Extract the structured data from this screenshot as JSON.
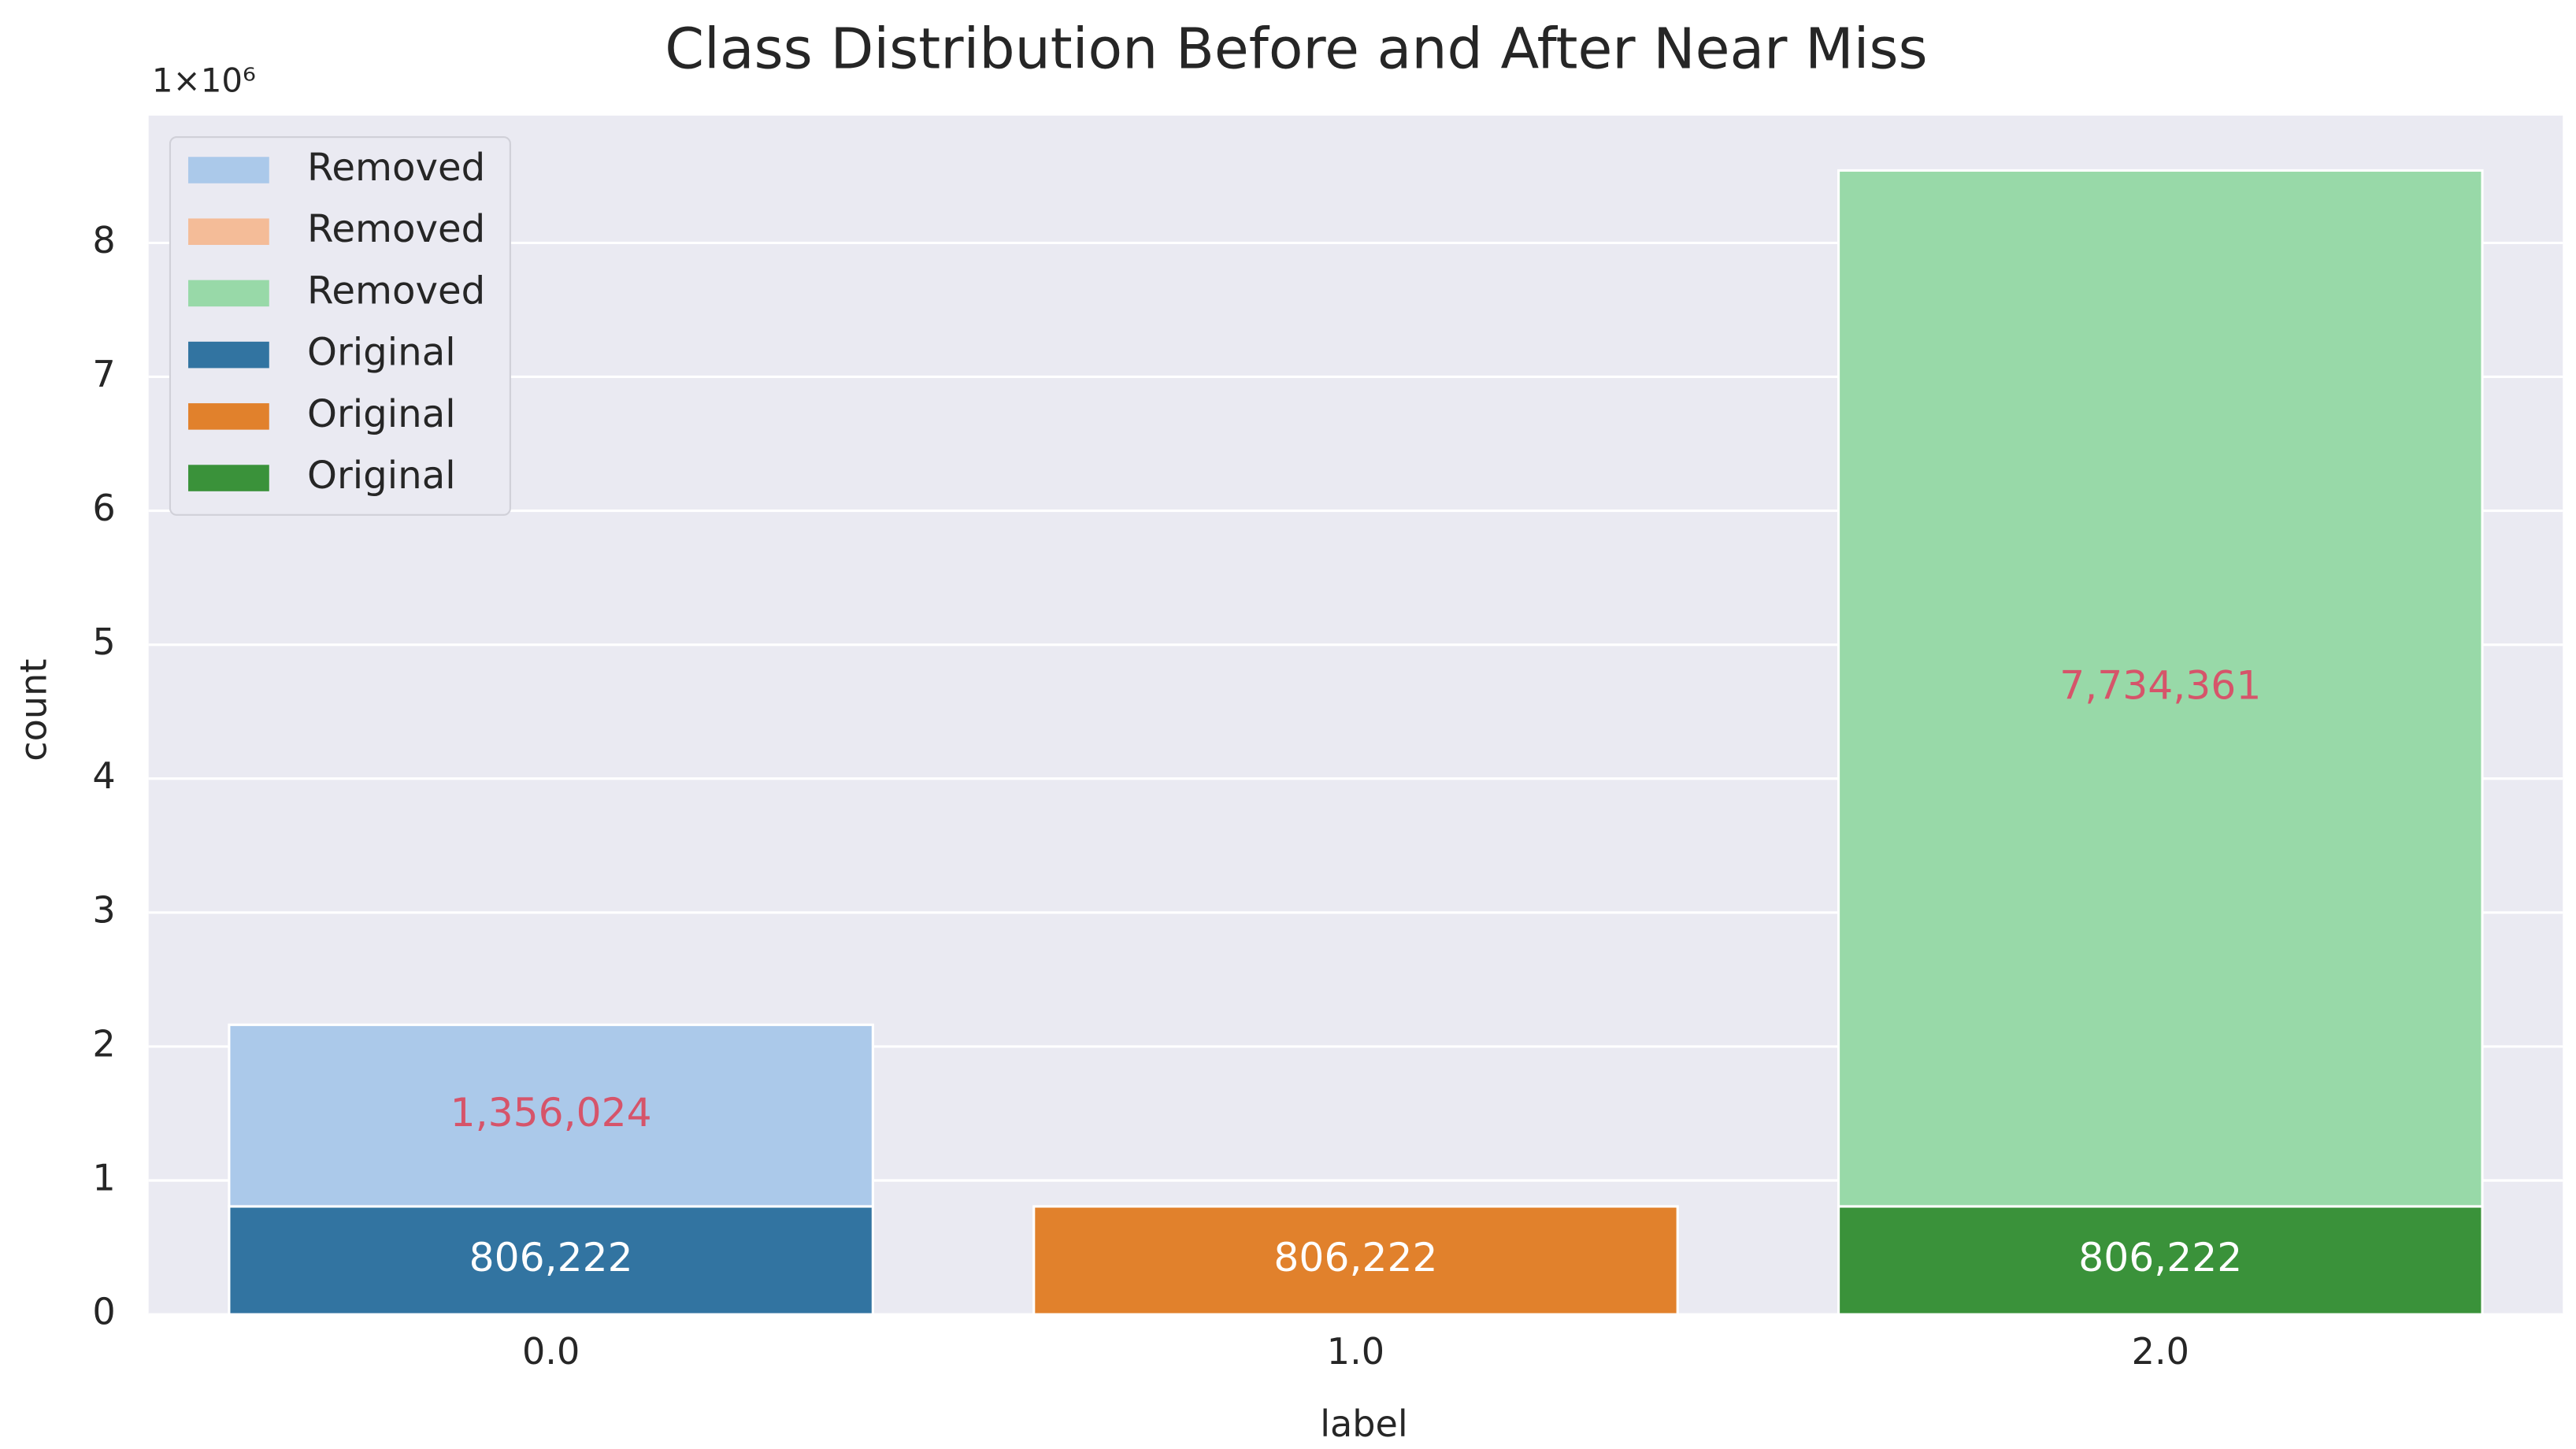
{
  "chart_data": {
    "type": "stacked_bar",
    "title": "Class Distribution Before and After Near Miss",
    "x_label": "label",
    "y_label": "count",
    "y_offset_label": "1×10⁶",
    "categories": [
      "0.0",
      "1.0",
      "2.0"
    ],
    "series": [
      {
        "name": "Removed",
        "color": "#abc9ea",
        "label_color": "#d6546a",
        "values": [
          1356024,
          null,
          null
        ],
        "value_labels": [
          "1,356,024",
          null,
          null
        ]
      },
      {
        "name": "Removed",
        "color": "#f4bc98",
        "label_color": "#d6546a",
        "values": [
          null,
          null,
          null
        ],
        "value_labels": [
          null,
          null,
          null
        ]
      },
      {
        "name": "Removed",
        "color": "#98d9a8",
        "label_color": "#d6546a",
        "values": [
          null,
          null,
          7734361
        ],
        "value_labels": [
          null,
          null,
          "7,734,361"
        ]
      },
      {
        "name": "Original",
        "color": "#3274a1",
        "label_color": "#ffffff",
        "values": [
          806222,
          null,
          null
        ],
        "value_labels": [
          "806,222",
          null,
          null
        ]
      },
      {
        "name": "Original",
        "color": "#e1812c",
        "label_color": "#ffffff",
        "values": [
          null,
          806222,
          null
        ],
        "value_labels": [
          null,
          "806,222",
          null
        ]
      },
      {
        "name": "Original",
        "color": "#3a923a",
        "label_color": "#ffffff",
        "values": [
          null,
          null,
          806222
        ],
        "value_labels": [
          null,
          null,
          "806,222"
        ]
      }
    ],
    "ylim": [
      0,
      8950000
    ],
    "yticks": [
      {
        "value": 0,
        "label": "0"
      },
      {
        "value": 1000000,
        "label": "1"
      },
      {
        "value": 2000000,
        "label": "2"
      },
      {
        "value": 3000000,
        "label": "3"
      },
      {
        "value": 4000000,
        "label": "4"
      },
      {
        "value": 5000000,
        "label": "5"
      },
      {
        "value": 6000000,
        "label": "6"
      },
      {
        "value": 7000000,
        "label": "7"
      },
      {
        "value": 8000000,
        "label": "8"
      }
    ],
    "grid": true,
    "legend": "upper left"
  }
}
